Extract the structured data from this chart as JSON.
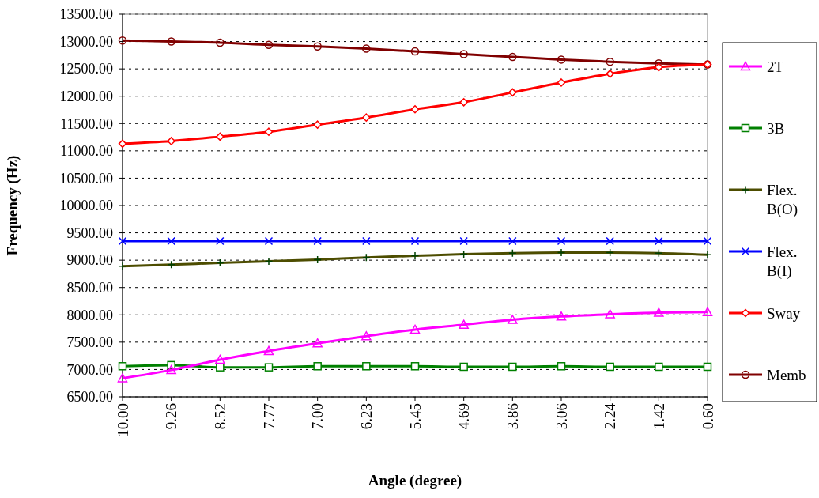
{
  "chart_data": {
    "type": "line",
    "xlabel": "Angle (degree)",
    "ylabel": "Frequency (Hz)",
    "categories": [
      "10.00",
      "9.26",
      "8.52",
      "7.77",
      "7.00",
      "6.23",
      "5.45",
      "4.69",
      "3.86",
      "3.06",
      "2.24",
      "1.42",
      "0.60"
    ],
    "ylim": [
      6500,
      13500
    ],
    "yticks": [
      {
        "value": 6500,
        "label": "6500.00"
      },
      {
        "value": 7000,
        "label": "7000.00"
      },
      {
        "value": 7500,
        "label": "7500.00"
      },
      {
        "value": 8000,
        "label": "8000.00"
      },
      {
        "value": 8500,
        "label": "8500.00"
      },
      {
        "value": 9000,
        "label": "9000.00"
      },
      {
        "value": 9500,
        "label": "9500.00"
      },
      {
        "value": 10000,
        "label": "10000.00"
      },
      {
        "value": 10500,
        "label": "10500.00"
      },
      {
        "value": 11000,
        "label": "11000.00"
      },
      {
        "value": 11500,
        "label": "11500.00"
      },
      {
        "value": 12000,
        "label": "12000.00"
      },
      {
        "value": 12500,
        "label": "12500.00"
      },
      {
        "value": 13000,
        "label": "13000.00"
      },
      {
        "value": 13500,
        "label": "13500.00"
      }
    ],
    "grid": "y",
    "legend": "right",
    "series": [
      {
        "name": "2T",
        "color": "#ff00ff",
        "marker": "triangle",
        "values": [
          6840,
          6990,
          7180,
          7340,
          7480,
          7610,
          7730,
          7820,
          7910,
          7970,
          8010,
          8040,
          8050
        ]
      },
      {
        "name": "3B",
        "color": "#008000",
        "marker": "square",
        "values": [
          7060,
          7080,
          7040,
          7040,
          7060,
          7060,
          7060,
          7050,
          7050,
          7060,
          7050,
          7050,
          7050
        ]
      },
      {
        "name": "Flex. B(O)",
        "color": "#4d4d00",
        "marker": "cross",
        "values": [
          8890,
          8920,
          8950,
          8980,
          9010,
          9050,
          9080,
          9110,
          9130,
          9140,
          9140,
          9130,
          9100
        ]
      },
      {
        "name": "Flex. B(I)",
        "color": "#0000ff",
        "marker": "x",
        "values": [
          9350,
          9350,
          9350,
          9350,
          9350,
          9350,
          9350,
          9350,
          9350,
          9350,
          9350,
          9350,
          9350
        ]
      },
      {
        "name": "Sway",
        "color": "#ff0000",
        "marker": "diamond",
        "values": [
          11130,
          11180,
          11260,
          11350,
          11480,
          11610,
          11760,
          11890,
          12070,
          12250,
          12410,
          12530,
          12580
        ]
      },
      {
        "name": "Memb",
        "color": "#800000",
        "marker": "circle",
        "values": [
          13020,
          13000,
          12980,
          12940,
          12910,
          12870,
          12820,
          12770,
          12720,
          12670,
          12630,
          12600,
          12580
        ]
      }
    ]
  }
}
